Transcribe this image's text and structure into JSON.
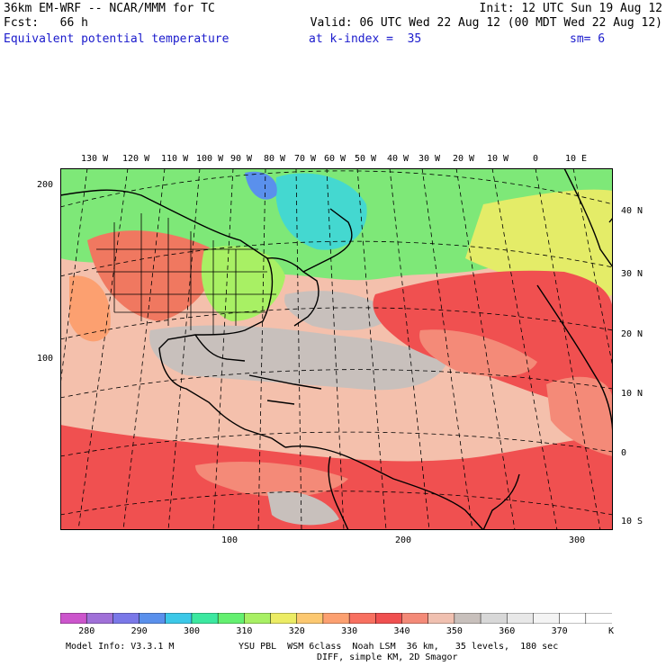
{
  "header": {
    "line1_left": "36km EM-WRF -- NCAR/MMM for TC",
    "line1_right": "Init: 12 UTC Sun 19 Aug 12",
    "line2_left": "Fcst:   66 h",
    "line2_right": "Valid: 06 UTC Wed 22 Aug 12 (00 MDT Wed 22 Aug 12)",
    "field_name": "Equivalent potential temperature",
    "level": "at k-index =  35",
    "smoothing": "sm= 6"
  },
  "map": {
    "lon_labels": [
      "130 W",
      "120 W",
      "110 W",
      "100 W",
      "90 W",
      "80 W",
      "70 W",
      "60 W",
      "50 W",
      "40 W",
      "30 W",
      "20 W",
      "10 W",
      "0",
      "10 E"
    ],
    "lat_labels": [
      "40 N",
      "30 N",
      "20 N",
      "10 N",
      "0",
      "10 S"
    ],
    "grid_y_labels": [
      "200",
      "100"
    ],
    "grid_x_labels": [
      "100",
      "200",
      "300"
    ]
  },
  "colorbar": {
    "colors": [
      "#cc55cc",
      "#a070d8",
      "#7a78e8",
      "#5a90ec",
      "#3cc8e8",
      "#3ce8a0",
      "#64f070",
      "#a8f064",
      "#ecec64",
      "#fcc870",
      "#fca070",
      "#f87060",
      "#f05050",
      "#f48a78",
      "#f0c0b0",
      "#c8c0bc",
      "#d8d8d8",
      "#e8e8e8",
      "#f4f4f4",
      "#ffffff",
      "#ffffff"
    ],
    "labels": [
      "280",
      "290",
      "300",
      "310",
      "320",
      "330",
      "340",
      "350",
      "360",
      "370"
    ],
    "unit": "K"
  },
  "footer": {
    "model_info": "Model Info: V3.3.1 M",
    "physics_line1": "YSU PBL  WSM 6class  Noah LSM  36 km,   35 levels,  180 sec",
    "physics_line2": "DIFF, simple KM, 2D Smagor"
  }
}
